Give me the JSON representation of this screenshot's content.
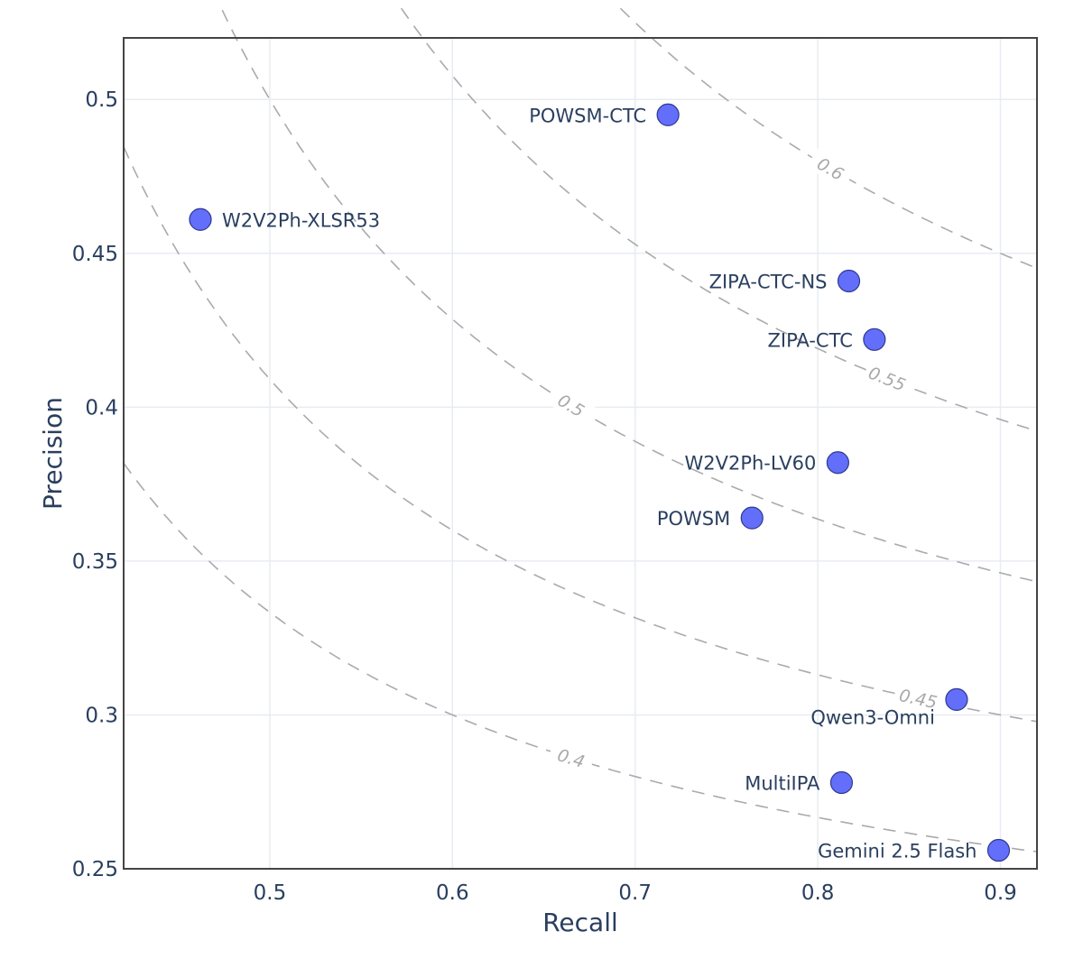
{
  "chart_data": {
    "type": "scatter",
    "title": "",
    "xlabel": "Recall",
    "ylabel": "Precision",
    "xlim": [
      0.42,
      0.92
    ],
    "ylim": [
      0.25,
      0.52
    ],
    "x_ticks": [
      0.5,
      0.6,
      0.7,
      0.8,
      0.9
    ],
    "y_ticks": [
      0.25,
      0.3,
      0.35,
      0.4,
      0.45,
      0.5
    ],
    "x_tick_labels": [
      "0.5",
      "0.6",
      "0.7",
      "0.8",
      "0.9"
    ],
    "y_tick_labels": [
      "0.25",
      "0.3",
      "0.35",
      "0.4",
      "0.45",
      "0.5"
    ],
    "grid": true,
    "legend": "none",
    "marker_color": "#636efa",
    "points": [
      {
        "label": "POWSM-CTC",
        "x": 0.718,
        "y": 0.495,
        "label_side": "left"
      },
      {
        "label": "W2V2Ph-XLSR53",
        "x": 0.462,
        "y": 0.461,
        "label_side": "right"
      },
      {
        "label": "ZIPA-CTC-NS",
        "x": 0.817,
        "y": 0.441,
        "label_side": "left"
      },
      {
        "label": "ZIPA-CTC",
        "x": 0.831,
        "y": 0.422,
        "label_side": "left"
      },
      {
        "label": "W2V2Ph-LV60",
        "x": 0.811,
        "y": 0.382,
        "label_side": "left"
      },
      {
        "label": "POWSM",
        "x": 0.764,
        "y": 0.364,
        "label_side": "left"
      },
      {
        "label": "Qwen3-Omni",
        "x": 0.876,
        "y": 0.305,
        "label_side": "below-left"
      },
      {
        "label": "MultiIPA",
        "x": 0.813,
        "y": 0.278,
        "label_side": "left"
      },
      {
        "label": "Gemini 2.5 Flash",
        "x": 0.899,
        "y": 0.256,
        "label_side": "left"
      }
    ],
    "f1_isolines": [
      {
        "label": "0.4",
        "value": 0.4,
        "label_x": 0.665
      },
      {
        "label": "0.45",
        "value": 0.45,
        "label_x": 0.855
      },
      {
        "label": "0.5",
        "value": 0.5,
        "label_x": 0.665
      },
      {
        "label": "0.55",
        "value": 0.55,
        "label_x": 0.838
      },
      {
        "label": "0.6",
        "value": 0.6,
        "label_x": 0.807
      }
    ]
  }
}
